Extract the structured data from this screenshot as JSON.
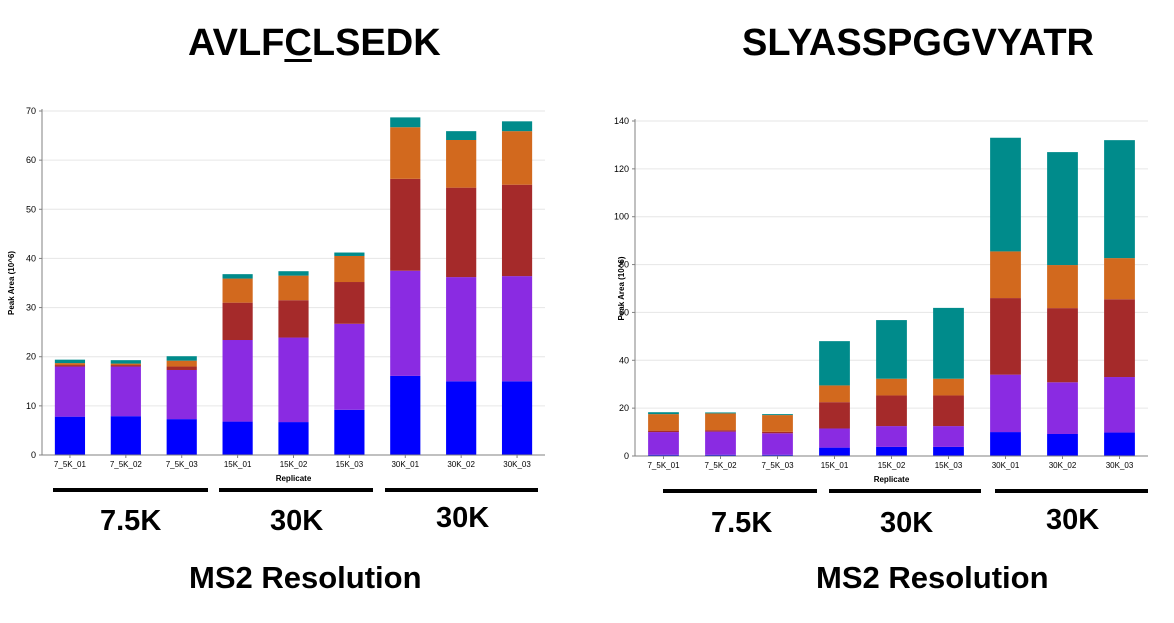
{
  "colors": {
    "blue": "#0000FF",
    "purple": "#8A2BE2",
    "red": "#A52A2A",
    "orange": "#D2691E",
    "teal": "#008B8B",
    "axis": "#808080",
    "grid": "#e6e6e6"
  },
  "chart_data": [
    {
      "type": "bar",
      "stacked": true,
      "title_parts": [
        "AVLF",
        "C",
        "LSEDK"
      ],
      "xlabel": "Replicate",
      "ylabel": "Peak Area (10^6)",
      "ylim": [
        0,
        70
      ],
      "yticks": [
        0,
        10,
        20,
        30,
        40,
        50,
        60,
        70
      ],
      "categories": [
        "7_5K_01",
        "7_5K_02",
        "7_5K_03",
        "15K_01",
        "15K_02",
        "15K_03",
        "30K_01",
        "30K_02",
        "30K_03"
      ],
      "series": [
        {
          "name": "blue",
          "color": "#0000FF",
          "values": [
            7.8,
            7.9,
            7.3,
            6.8,
            6.7,
            9.2,
            16.1,
            15.0,
            15.0
          ]
        },
        {
          "name": "purple",
          "color": "#8A2BE2",
          "values": [
            10.2,
            10.1,
            10.0,
            16.6,
            17.2,
            17.5,
            21.4,
            21.2,
            21.4
          ]
        },
        {
          "name": "darkred",
          "color": "#A52A2A",
          "values": [
            0.3,
            0.3,
            0.7,
            7.6,
            7.6,
            8.5,
            18.7,
            18.2,
            18.6
          ]
        },
        {
          "name": "orange",
          "color": "#D2691E",
          "values": [
            0.4,
            0.3,
            1.2,
            4.9,
            5.0,
            5.3,
            10.5,
            9.7,
            10.9
          ]
        },
        {
          "name": "teal",
          "color": "#008B8B",
          "values": [
            0.7,
            0.7,
            0.9,
            0.9,
            0.9,
            0.7,
            2.0,
            1.8,
            2.0
          ]
        }
      ],
      "groups": [
        "7.5K",
        "30K",
        "30K"
      ],
      "footer": "MS2 Resolution"
    },
    {
      "type": "bar",
      "stacked": true,
      "title_parts": [
        "SLYASSPGGVYATR"
      ],
      "xlabel": "Replicate",
      "ylabel": "Peak Area (10^6)",
      "ylim": [
        0,
        140
      ],
      "yticks": [
        0,
        20,
        40,
        60,
        80,
        100,
        120,
        140
      ],
      "categories": [
        "7_5K_01",
        "7_5K_02",
        "7_5K_03",
        "15K_01",
        "15K_02",
        "15K_03",
        "30K_01",
        "30K_02",
        "30K_03"
      ],
      "series": [
        {
          "name": "blue",
          "color": "#0000FF",
          "values": [
            0.5,
            0.5,
            0.5,
            3.5,
            3.8,
            3.8,
            10.0,
            9.2,
            9.8
          ]
        },
        {
          "name": "purple",
          "color": "#8A2BE2",
          "values": [
            9.5,
            9.7,
            9.0,
            8.0,
            8.7,
            8.7,
            24.0,
            21.6,
            23.2
          ]
        },
        {
          "name": "darkred",
          "color": "#A52A2A",
          "values": [
            0.6,
            0.6,
            0.6,
            11.0,
            12.8,
            12.8,
            32.0,
            31.0,
            32.5
          ]
        },
        {
          "name": "orange",
          "color": "#D2691E",
          "values": [
            6.9,
            7.0,
            7.0,
            7.0,
            7.0,
            7.0,
            19.5,
            18.0,
            17.2
          ]
        },
        {
          "name": "teal",
          "color": "#008B8B",
          "values": [
            0.8,
            0.4,
            0.4,
            18.5,
            24.5,
            29.6,
            47.5,
            47.2,
            49.3
          ]
        }
      ],
      "groups": [
        "7.5K",
        "30K",
        "30K"
      ],
      "footer": "MS2 Resolution"
    }
  ]
}
